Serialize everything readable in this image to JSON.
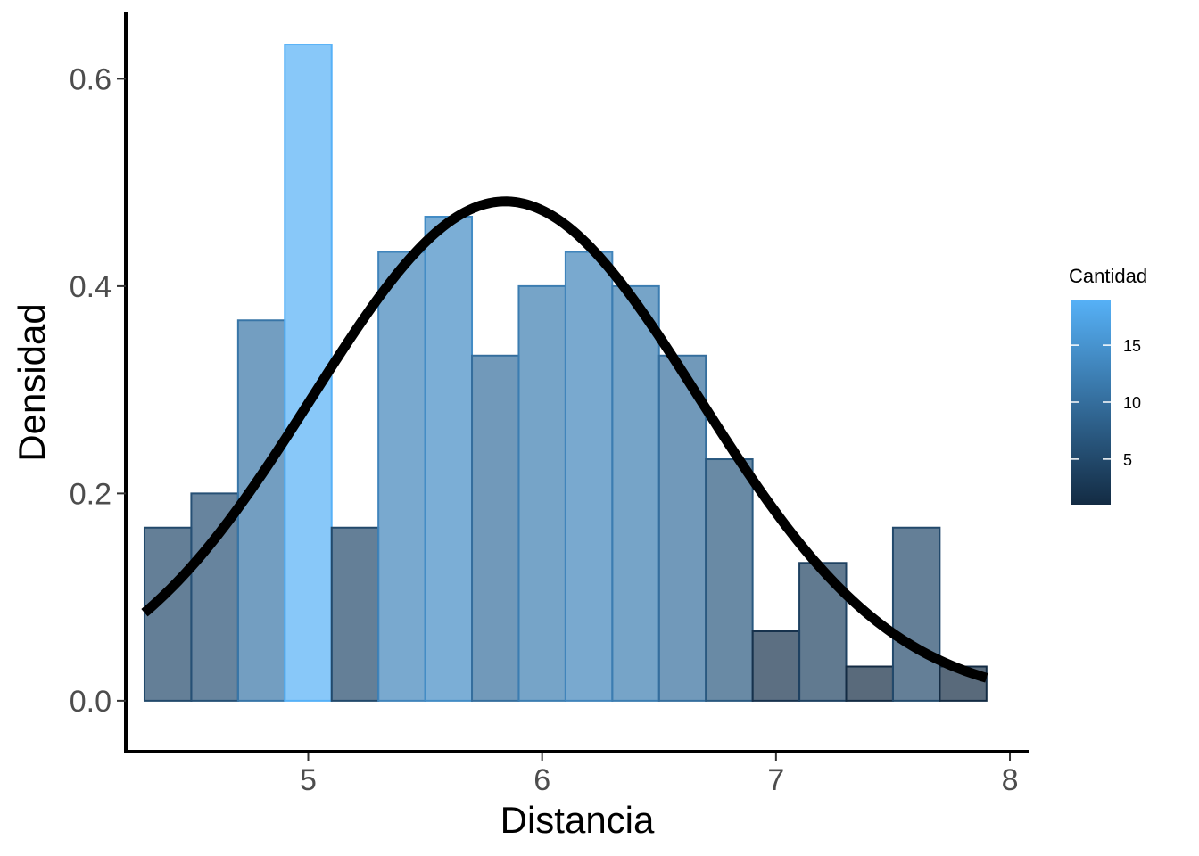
{
  "chart_data": {
    "type": "bar",
    "subtype": "histogram-with-density-curve",
    "xlabel": "Distancia",
    "ylabel": "Densidad",
    "xlim": [
      4.22,
      8.08
    ],
    "ylim": [
      -0.05,
      0.664
    ],
    "x_ticks": [
      5,
      6,
      7,
      8
    ],
    "x_tick_labels": [
      "5",
      "6",
      "7",
      "8"
    ],
    "y_ticks": [
      0.0,
      0.2,
      0.4,
      0.6
    ],
    "y_tick_labels": [
      "0.0",
      "0.2",
      "0.4",
      "0.6"
    ],
    "bin_width": 0.2,
    "bins": [
      {
        "x_start": 4.3,
        "x_end": 4.5,
        "density": 0.167,
        "count": 5
      },
      {
        "x_start": 4.5,
        "x_end": 4.7,
        "density": 0.2,
        "count": 6
      },
      {
        "x_start": 4.7,
        "x_end": 4.9,
        "density": 0.367,
        "count": 11
      },
      {
        "x_start": 4.9,
        "x_end": 5.1,
        "density": 0.633,
        "count": 19
      },
      {
        "x_start": 5.1,
        "x_end": 5.3,
        "density": 0.167,
        "count": 5
      },
      {
        "x_start": 5.3,
        "x_end": 5.5,
        "density": 0.433,
        "count": 13
      },
      {
        "x_start": 5.5,
        "x_end": 5.7,
        "density": 0.467,
        "count": 14
      },
      {
        "x_start": 5.7,
        "x_end": 5.9,
        "density": 0.333,
        "count": 10
      },
      {
        "x_start": 5.9,
        "x_end": 6.1,
        "density": 0.4,
        "count": 12
      },
      {
        "x_start": 6.1,
        "x_end": 6.3,
        "density": 0.433,
        "count": 13
      },
      {
        "x_start": 6.3,
        "x_end": 6.5,
        "density": 0.4,
        "count": 12
      },
      {
        "x_start": 6.5,
        "x_end": 6.7,
        "density": 0.333,
        "count": 10
      },
      {
        "x_start": 6.7,
        "x_end": 6.9,
        "density": 0.233,
        "count": 7
      },
      {
        "x_start": 6.9,
        "x_end": 7.1,
        "density": 0.067,
        "count": 2
      },
      {
        "x_start": 7.1,
        "x_end": 7.3,
        "density": 0.133,
        "count": 4
      },
      {
        "x_start": 7.3,
        "x_end": 7.5,
        "density": 0.033,
        "count": 1
      },
      {
        "x_start": 7.5,
        "x_end": 7.7,
        "density": 0.167,
        "count": 5
      },
      {
        "x_start": 7.7,
        "x_end": 7.9,
        "density": 0.033,
        "count": 1
      }
    ],
    "density_curve": {
      "kind": "normal",
      "mean": 5.843,
      "sd": 0.828,
      "x_range": [
        4.3,
        7.9
      ],
      "color": "#000000"
    },
    "grid": false,
    "legend": {
      "title": "Cantidad",
      "placement": "right",
      "type": "colorbar",
      "range": [
        1,
        19
      ],
      "breaks": [
        5,
        10,
        15
      ],
      "break_labels": [
        "5",
        "10",
        "15"
      ],
      "low_color": "#132B43",
      "high_color": "#56B1F7"
    },
    "bar_fill_opacity": 0.7
  }
}
